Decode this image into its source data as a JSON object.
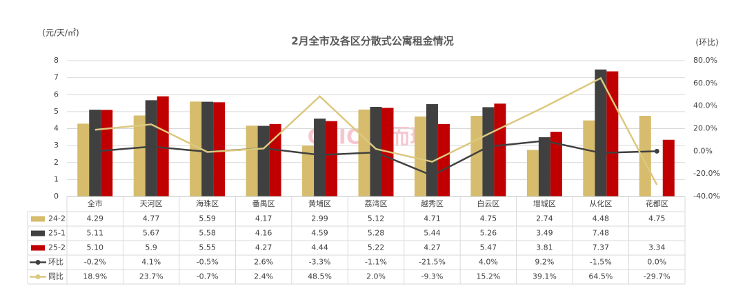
{
  "chart_data": {
    "type": "bar",
    "title": "2月全市及各区分散式公寓租金情况",
    "y_label": "(元/天/㎡)",
    "y2_label": "(环比)",
    "watermark": "CRIC 克而瑞",
    "categories": [
      "全市",
      "天河区",
      "海珠区",
      "番禺区",
      "黄埔区",
      "荔湾区",
      "越秀区",
      "白云区",
      "增城区",
      "从化区",
      "花都区"
    ],
    "ylim": [
      0,
      8
    ],
    "yticks": [
      0,
      1,
      2,
      3,
      4,
      5,
      6,
      7,
      8
    ],
    "y2lim": [
      -40,
      80
    ],
    "y2ticks": [
      {
        "value": -40,
        "label": "-40.0%"
      },
      {
        "value": -20,
        "label": "-20.0%"
      },
      {
        "value": 0,
        "label": "0.0%"
      },
      {
        "value": 20,
        "label": "20.0%"
      },
      {
        "value": 40,
        "label": "40.0%"
      },
      {
        "value": 60,
        "label": "60.0%"
      },
      {
        "value": 80,
        "label": "80.0%"
      }
    ],
    "grid": true,
    "series": [
      {
        "name": "24-2",
        "type": "bar",
        "color": "#d6bc6c",
        "values": [
          4.29,
          4.77,
          5.59,
          4.17,
          2.99,
          5.12,
          4.71,
          4.75,
          2.74,
          4.48,
          4.75
        ],
        "value_labels": [
          "4.29",
          "4.77",
          "5.59",
          "4.17",
          "2.99",
          "5.12",
          "4.71",
          "4.75",
          "2.74",
          "4.48",
          "4.75"
        ]
      },
      {
        "name": "25-1",
        "type": "bar",
        "color": "#404040",
        "values": [
          5.11,
          5.67,
          5.58,
          4.16,
          4.59,
          5.28,
          5.44,
          5.26,
          3.49,
          7.48,
          null
        ],
        "value_labels": [
          "5.11",
          "5.67",
          "5.58",
          "4.16",
          "4.59",
          "5.28",
          "5.44",
          "5.26",
          "3.49",
          "7.48",
          null
        ]
      },
      {
        "name": "25-2",
        "type": "bar",
        "color": "#c00000",
        "values": [
          5.1,
          5.9,
          5.55,
          4.27,
          4.44,
          5.22,
          4.27,
          5.47,
          3.81,
          7.37,
          3.34
        ],
        "value_labels": [
          "5.10",
          "5.9",
          "5.55",
          "4.27",
          "4.44",
          "5.22",
          "4.27",
          "5.47",
          "3.81",
          "7.37",
          "3.34"
        ]
      },
      {
        "name": "环比",
        "type": "line",
        "axis": "y2",
        "color": "#404040",
        "markers": true,
        "values": [
          -0.2,
          4.1,
          -0.5,
          2.6,
          -3.3,
          -1.1,
          -21.5,
          4.0,
          9.2,
          -1.5,
          0.0
        ],
        "value_labels": [
          "-0.2%",
          "4.1%",
          "-0.5%",
          "2.6%",
          "-3.3%",
          "-1.1%",
          "-21.5%",
          "4.0%",
          "9.2%",
          "-1.5%",
          "0.0%"
        ]
      },
      {
        "name": "同比",
        "type": "line",
        "axis": "y2",
        "color": "#dcc87e",
        "markers": false,
        "values": [
          18.9,
          23.7,
          -0.7,
          2.4,
          48.5,
          2.0,
          -9.3,
          15.2,
          39.1,
          64.5,
          -29.7
        ],
        "value_labels": [
          "18.9%",
          "23.7%",
          "-0.7%",
          "2.4%",
          "48.5%",
          "2.0%",
          "-9.3%",
          "15.2%",
          "39.1%",
          "64.5%",
          "-29.7%"
        ]
      }
    ]
  }
}
